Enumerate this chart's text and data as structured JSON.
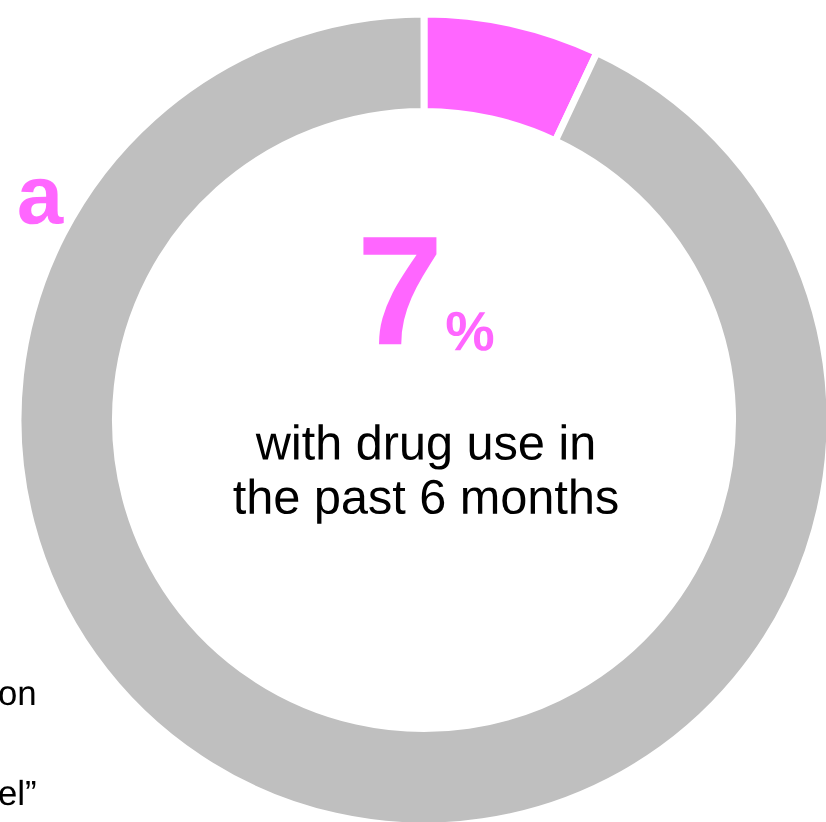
{
  "chart_data": {
    "type": "donut",
    "categories": [
      null,
      null
    ],
    "values": [
      7,
      93
    ],
    "colors": [
      "#ff66ff",
      "#bfbfbf"
    ],
    "value_labels": [
      "7",
      null
    ],
    "annotations": [
      "%",
      "with drug use in\nthe past 6 months",
      "a",
      "on",
      "el”"
    ]
  }
}
